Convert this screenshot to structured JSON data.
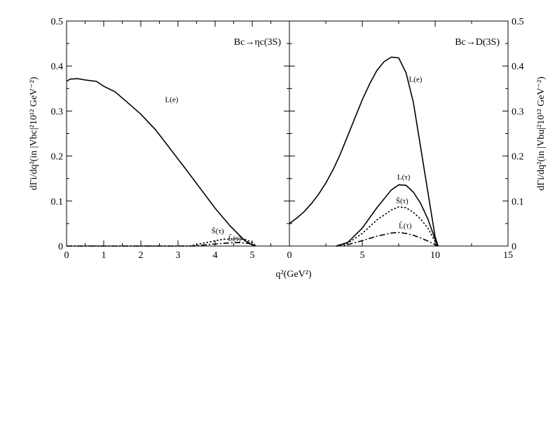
{
  "chart_data": {
    "type": "line",
    "shared_xlabel": "q²(GeV²)",
    "panels": [
      {
        "title": "Bc→ηc(3S)",
        "ylabel": "dΓi/dq²(in |Vbc|²10¹² GeV⁻²)",
        "xlim": [
          0,
          6
        ],
        "ylim": [
          0,
          0.5
        ],
        "xticks": [
          0,
          1,
          2,
          3,
          4,
          5
        ],
        "yticks": [
          0,
          0.1,
          0.2,
          0.3,
          0.4,
          0.5
        ],
        "ytick_labels": [
          "0",
          "0.1",
          "0.2",
          "0.3",
          "0.4",
          "0.5"
        ],
        "series": [
          {
            "name": "L(e)",
            "style": "solid",
            "x": [
              0,
              0.1,
              0.3,
              0.5,
              0.8,
              1.0,
              1.3,
              1.6,
              2.0,
              2.4,
              2.8,
              3.2,
              3.6,
              4.0,
              4.4,
              4.8,
              5.0,
              5.1
            ],
            "y": [
              0.366,
              0.371,
              0.372,
              0.369,
              0.366,
              0.355,
              0.343,
              0.322,
              0.293,
              0.258,
              0.215,
              0.172,
              0.128,
              0.084,
              0.045,
              0.012,
              0.003,
              0.0
            ]
          },
          {
            "name": "S̃(τ)",
            "style": "dot",
            "x": [
              0,
              3.3,
              3.6,
              3.9,
              4.2,
              4.5,
              4.8,
              5.0,
              5.1
            ],
            "y": [
              0,
              0,
              0.005,
              0.01,
              0.015,
              0.016,
              0.015,
              0.008,
              0.0
            ]
          },
          {
            "name": "L̃(τ)",
            "style": "dashdot",
            "x": [
              0,
              3.4,
              3.8,
              4.2,
              4.6,
              4.9,
              5.1
            ],
            "y": [
              0,
              0,
              0.003,
              0.006,
              0.008,
              0.006,
              0.0
            ]
          }
        ],
        "labels": [
          {
            "text": "L(e)",
            "x": 2.65,
            "y": 0.32
          },
          {
            "text": "S̃(τ)",
            "x": 3.9,
            "y": 0.028
          },
          {
            "text": "L̃(τ)",
            "x": 4.35,
            "y": 0.012
          }
        ]
      },
      {
        "title": "Bc→D(3S)",
        "ylabel": "dΓi/dq²(in |Vbu|²10¹² GeV⁻²)",
        "xlim": [
          0,
          15
        ],
        "ylim": [
          0,
          0.5
        ],
        "xticks": [
          0,
          5,
          10,
          15
        ],
        "yticks": [
          0,
          0.1,
          0.2,
          0.3,
          0.4,
          0.5
        ],
        "ytick_labels": [
          "0",
          "0.1",
          "0.2",
          "0.3",
          "0.4",
          "0.5"
        ],
        "series": [
          {
            "name": "L(e)",
            "style": "solid",
            "x": [
              0,
              0.5,
              1,
              1.5,
              2,
              2.5,
              3,
              3.5,
              4,
              4.5,
              5,
              5.5,
              6,
              6.5,
              7,
              7.5,
              8,
              8.5,
              9,
              9.5,
              10,
              10.2
            ],
            "y": [
              0.05,
              0.062,
              0.076,
              0.094,
              0.115,
              0.14,
              0.17,
              0.205,
              0.245,
              0.285,
              0.325,
              0.36,
              0.39,
              0.41,
              0.42,
              0.418,
              0.385,
              0.32,
              0.22,
              0.12,
              0.02,
              0.0
            ]
          },
          {
            "name": "L(τ)",
            "style": "solid",
            "x": [
              3.2,
              4,
              5,
              6,
              7,
              7.5,
              8,
              8.5,
              9,
              9.5,
              10,
              10.2
            ],
            "y": [
              0,
              0.008,
              0.04,
              0.085,
              0.125,
              0.136,
              0.135,
              0.12,
              0.095,
              0.06,
              0.015,
              0.0
            ]
          },
          {
            "name": "S̃(τ)",
            "style": "dot",
            "x": [
              3.2,
              4,
              5,
              6,
              7,
              7.5,
              8,
              8.5,
              9,
              9.5,
              10,
              10.2
            ],
            "y": [
              0,
              0.006,
              0.028,
              0.058,
              0.08,
              0.087,
              0.085,
              0.075,
              0.06,
              0.04,
              0.01,
              0.0
            ]
          },
          {
            "name": "L̃(τ)",
            "style": "dashdot",
            "x": [
              3.2,
              4,
              5,
              6,
              7,
              7.5,
              8,
              8.5,
              9,
              9.5,
              10,
              10.2
            ],
            "y": [
              0,
              0.003,
              0.012,
              0.022,
              0.029,
              0.03,
              0.028,
              0.024,
              0.018,
              0.011,
              0.003,
              0.0
            ]
          }
        ],
        "labels": [
          {
            "text": "L(e)",
            "x": 8.2,
            "y": 0.365
          },
          {
            "text": "L(τ)",
            "x": 7.4,
            "y": 0.148
          },
          {
            "text": "S̃(τ)",
            "x": 7.3,
            "y": 0.095
          },
          {
            "text": "L̃(τ)",
            "x": 7.5,
            "y": 0.04
          }
        ]
      }
    ]
  }
}
